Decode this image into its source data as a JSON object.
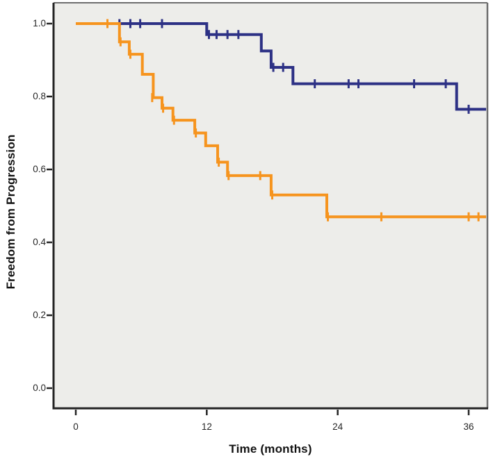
{
  "figure": {
    "background_color": "#ffffff",
    "plot_background_color": "#EDEDEA",
    "border_color_dark": "#242424",
    "border_color_light": "#6E6E6E",
    "tick_color": "#242424"
  },
  "chart_data": {
    "type": "line",
    "subtype": "kaplan_meier_step",
    "title": "",
    "xlabel": "Time (months)",
    "ylabel": "Freedom from Progression",
    "grid": false,
    "legend": "none",
    "xlim": [
      -2.05,
      37.7
    ],
    "ylim": [
      -0.055,
      1.06
    ],
    "x_ticks": [
      {
        "v": 0,
        "label": "0"
      },
      {
        "v": 12,
        "label": "12"
      },
      {
        "v": 24,
        "label": "24"
      },
      {
        "v": 36,
        "label": "36"
      }
    ],
    "y_ticks": [
      {
        "v": 1.0,
        "label": "1.0"
      },
      {
        "v": 0.8,
        "label": "0.8"
      },
      {
        "v": 0.6,
        "label": "0.6"
      },
      {
        "v": 0.4,
        "label": "0.4"
      },
      {
        "v": 0.2,
        "label": "0.2"
      },
      {
        "v": 0.0,
        "label": "0.0"
      }
    ],
    "series": [
      {
        "name": "series-navy",
        "color": "#2D3185",
        "end_time": 37.6,
        "steps": [
          [
            0,
            1.0
          ],
          [
            12.0,
            0.97
          ],
          [
            17.0,
            0.925
          ],
          [
            17.9,
            0.88
          ],
          [
            19.9,
            0.835
          ],
          [
            34.9,
            0.765
          ]
        ],
        "censors": [
          [
            4.0,
            1.0
          ],
          [
            5.0,
            1.0
          ],
          [
            5.9,
            1.0
          ],
          [
            7.9,
            1.0
          ],
          [
            12.2,
            0.97
          ],
          [
            12.9,
            0.97
          ],
          [
            13.9,
            0.97
          ],
          [
            14.9,
            0.97
          ],
          [
            18.1,
            0.88
          ],
          [
            19.0,
            0.88
          ],
          [
            21.9,
            0.835
          ],
          [
            25.0,
            0.835
          ],
          [
            25.9,
            0.835
          ],
          [
            31.0,
            0.835
          ],
          [
            33.9,
            0.835
          ],
          [
            36.0,
            0.765
          ]
        ]
      },
      {
        "name": "series-orange",
        "color": "#F6941E",
        "end_time": 37.6,
        "steps": [
          [
            0,
            1.0
          ],
          [
            4.0,
            0.95
          ],
          [
            4.9,
            0.916
          ],
          [
            6.1,
            0.861
          ],
          [
            7.1,
            0.797
          ],
          [
            7.9,
            0.768
          ],
          [
            8.9,
            0.735
          ],
          [
            10.9,
            0.7
          ],
          [
            11.9,
            0.665
          ],
          [
            13.0,
            0.62
          ],
          [
            13.9,
            0.583
          ],
          [
            17.9,
            0.53
          ],
          [
            23.0,
            0.47
          ]
        ],
        "censors": [
          [
            2.9,
            1.0
          ],
          [
            4.1,
            0.95
          ],
          [
            5.0,
            0.916
          ],
          [
            7.0,
            0.797
          ],
          [
            8.0,
            0.768
          ],
          [
            9.0,
            0.735
          ],
          [
            11.0,
            0.7
          ],
          [
            13.1,
            0.62
          ],
          [
            14.0,
            0.583
          ],
          [
            16.9,
            0.583
          ],
          [
            18.0,
            0.53
          ],
          [
            23.1,
            0.47
          ],
          [
            28.0,
            0.47
          ],
          [
            36.0,
            0.47
          ],
          [
            36.9,
            0.47
          ]
        ]
      }
    ]
  }
}
